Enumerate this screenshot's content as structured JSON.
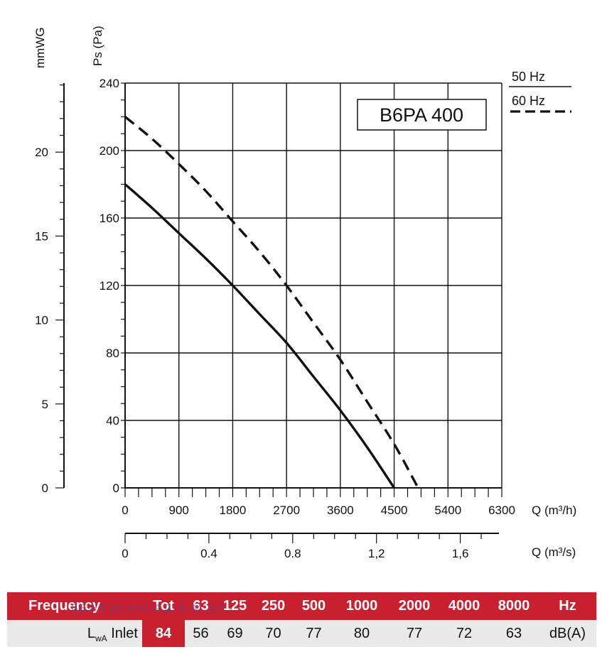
{
  "chart_data": {
    "type": "line",
    "model": "B6PA 400",
    "x_axis": {
      "label": "Q (m³/h)",
      "ticks": [
        0,
        900,
        1800,
        2700,
        3600,
        4500,
        5400,
        6300
      ],
      "tick_labels": [
        "0",
        "900",
        "1800",
        "2700",
        "3600",
        "4500",
        "5400",
        "6300"
      ],
      "range": [
        0,
        6300
      ]
    },
    "x_axis_secondary": {
      "label": "Q (m³/s)",
      "tick_labels": [
        "0",
        "0.4",
        "0.8",
        "1,2",
        "1,6"
      ]
    },
    "y_axis": {
      "label": "Ps (Pa)",
      "ticks": [
        0,
        40,
        80,
        120,
        160,
        200,
        240
      ],
      "tick_labels": [
        "0",
        "40",
        "80",
        "120",
        "160",
        "200",
        "240"
      ],
      "range": [
        0,
        240
      ]
    },
    "y_axis_secondary": {
      "label": "mmWG",
      "tick_labels": [
        "0",
        "5",
        "10",
        "15",
        "20"
      ]
    },
    "grid": true,
    "legend_position": "top-right",
    "series": [
      {
        "name": "50 Hz",
        "line_style": "solid",
        "x": [
          0,
          450,
          900,
          1350,
          1800,
          2250,
          2700,
          3150,
          3600,
          4050,
          4500
        ],
        "y": [
          180,
          166,
          151,
          136,
          120,
          103,
          86,
          66,
          46,
          24,
          0
        ]
      },
      {
        "name": "60 Hz",
        "line_style": "dashed",
        "x": [
          0,
          450,
          900,
          1350,
          1800,
          2250,
          2700,
          3150,
          3600,
          4050,
          4500,
          4900
        ],
        "y": [
          220,
          207,
          192,
          176,
          158,
          140,
          120,
          98,
          76,
          51,
          26,
          0
        ]
      }
    ]
  },
  "table": {
    "header_label": "Frequency",
    "header_cells": [
      "Tot",
      "63",
      "125",
      "250",
      "500",
      "1000",
      "2000",
      "4000",
      "8000",
      "Hz"
    ],
    "row_label_main": "L",
    "row_label_sub": "wA",
    "row_label_suffix": "Inlet",
    "values": [
      "84",
      "56",
      "69",
      "70",
      "77",
      "80",
      "77",
      "72",
      "63",
      "dB(A)"
    ]
  },
  "watermark": "ВЕНТЭЛЗАПАД V-M.BY",
  "colors": {
    "accent_red": "#c8202f",
    "row_gray": "#e9e9e9",
    "line": "#111111"
  }
}
